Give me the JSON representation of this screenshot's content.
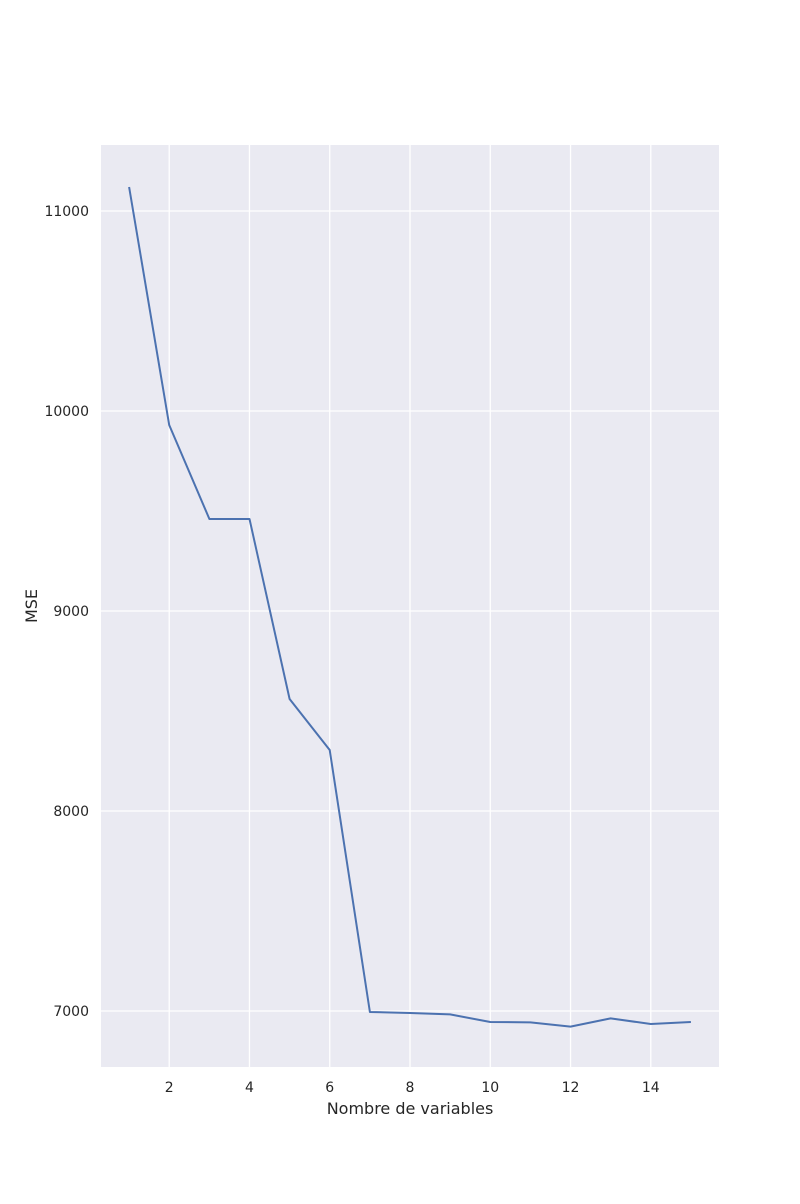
{
  "chart_data": {
    "type": "line",
    "title": "",
    "xlabel": "Nombre de variables",
    "ylabel": "MSE",
    "xlim": [
      0.3,
      15.7
    ],
    "ylim": [
      6720,
      11330
    ],
    "xticks": [
      2,
      4,
      6,
      8,
      10,
      12,
      14
    ],
    "yticks": [
      7000,
      8000,
      9000,
      10000,
      11000
    ],
    "xtick_labels": [
      "2",
      "4",
      "6",
      "8",
      "10",
      "12",
      "14"
    ],
    "ytick_labels": [
      "7000",
      "8000",
      "9000",
      "10000",
      "11000"
    ],
    "grid": true,
    "legend": "none",
    "series": [
      {
        "x": [
          1,
          2,
          3,
          4,
          5,
          6,
          7,
          8,
          9,
          10,
          11,
          12,
          13,
          14,
          15
        ],
        "values": [
          11120,
          9930,
          9460,
          9460,
          8560,
          8305,
          6995,
          6990,
          6983,
          6945,
          6943,
          6922,
          6963,
          6935,
          6945
        ]
      }
    ],
    "colors": {
      "plot_background": "#eaeaf2",
      "grid": "#ffffff",
      "line": "#4c72b0"
    }
  }
}
